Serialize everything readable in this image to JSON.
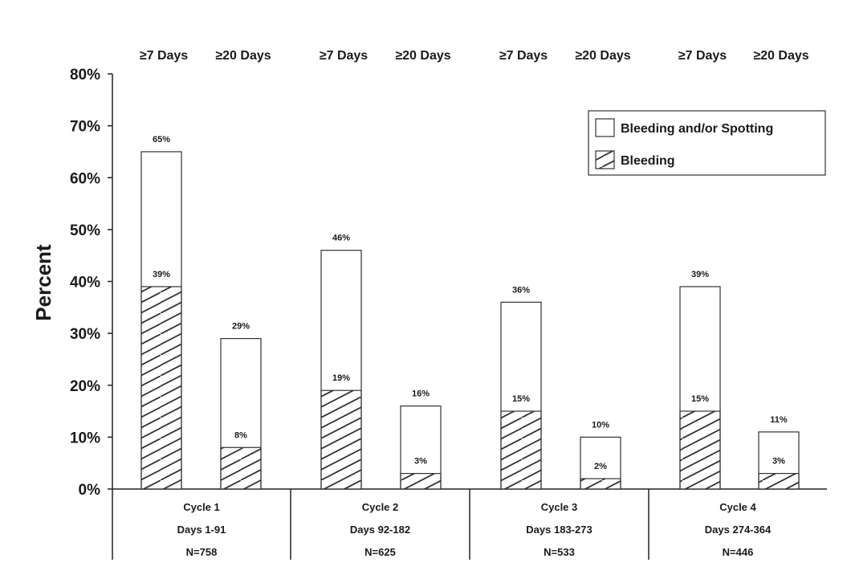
{
  "chart_data": {
    "type": "bar",
    "ylabel": "Percent",
    "ylim": [
      0,
      80
    ],
    "yticks": [
      "0%",
      "10%",
      "20%",
      "30%",
      "40%",
      "50%",
      "60%",
      "70%",
      "80%"
    ],
    "legend": {
      "placement": "top-right",
      "entries": [
        {
          "name": "Bleeding and/or Spotting",
          "pattern": "empty"
        },
        {
          "name": "Bleeding",
          "pattern": "hatched"
        }
      ]
    },
    "bar_labels": [
      "≥7 Days",
      "≥20 Days",
      "≥7 Days",
      "≥20 Days",
      "≥7 Days",
      "≥20 Days",
      "≥7 Days",
      "≥20 Days"
    ],
    "groups": [
      {
        "lines": [
          "Cycle 1",
          "Days 1-91",
          "N=758"
        ]
      },
      {
        "lines": [
          "Cycle 2",
          "Days 92-182",
          "N=625"
        ]
      },
      {
        "lines": [
          "Cycle 3",
          "Days 183-273",
          "N=533"
        ]
      },
      {
        "lines": [
          "Cycle 4",
          "Days 274-364",
          "N=446"
        ]
      }
    ],
    "series": [
      {
        "name": "Bleeding and/or Spotting",
        "values": [
          65,
          29,
          46,
          16,
          36,
          10,
          39,
          11
        ],
        "labels": [
          "65%",
          "29%",
          "46%",
          "16%",
          "36%",
          "10%",
          "39%",
          "11%"
        ]
      },
      {
        "name": "Bleeding",
        "values": [
          39,
          8,
          19,
          3,
          15,
          2,
          15,
          3
        ],
        "labels": [
          "39%",
          "8%",
          "19%",
          "3%",
          "15%",
          "2%",
          "15%",
          "3%"
        ]
      }
    ]
  }
}
